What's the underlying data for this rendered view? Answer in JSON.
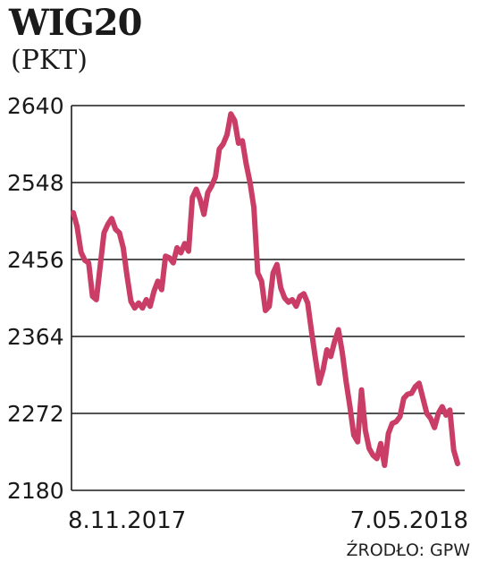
{
  "header": {
    "title": "WIG20",
    "subtitle": "(PKT)"
  },
  "source": "ŹRODŁO: GPW",
  "colors": {
    "line": "#c93d66",
    "grid": "#1a1a1a",
    "text": "#1a1a1a"
  },
  "chart_data": {
    "type": "line",
    "title": "WIG20",
    "ylabel": "(PKT)",
    "ylim": [
      2180,
      2640
    ],
    "yticks": [
      "2640",
      "2548",
      "2456",
      "2364",
      "2272",
      "2180"
    ],
    "xlim": [
      0,
      100
    ],
    "xticks": [
      "8.11.2017",
      "7.05.2018"
    ],
    "grid": "horizontal",
    "series": [
      {
        "name": "",
        "x": [
          0,
          1,
          2,
          3,
          4,
          5,
          6,
          7,
          8,
          9,
          10,
          11,
          12,
          13,
          14,
          15,
          16,
          17,
          18,
          19,
          20,
          21,
          22,
          23,
          24,
          25,
          26,
          27,
          28,
          29,
          30,
          31,
          32,
          33,
          34,
          35,
          36,
          37,
          38,
          39,
          40,
          41,
          42,
          43,
          44,
          45,
          46,
          47,
          48,
          49,
          50,
          51,
          52,
          53,
          54,
          55,
          56,
          57,
          58,
          59,
          60,
          61,
          62,
          63,
          64,
          65,
          66,
          67,
          68,
          69,
          70,
          71,
          72,
          73,
          74,
          75,
          76,
          77,
          78,
          79,
          80,
          81,
          82,
          83,
          84,
          85,
          86,
          87,
          88,
          89,
          90,
          91,
          92,
          93,
          94,
          95,
          96,
          97,
          98,
          99,
          100
        ],
        "values": [
          2512,
          2495,
          2465,
          2455,
          2452,
          2412,
          2408,
          2448,
          2488,
          2498,
          2505,
          2492,
          2488,
          2470,
          2436,
          2406,
          2398,
          2404,
          2398,
          2408,
          2400,
          2418,
          2430,
          2420,
          2460,
          2458,
          2452,
          2470,
          2464,
          2475,
          2466,
          2530,
          2540,
          2528,
          2510,
          2536,
          2544,
          2555,
          2588,
          2594,
          2605,
          2630,
          2622,
          2595,
          2598,
          2570,
          2548,
          2518,
          2440,
          2430,
          2395,
          2400,
          2440,
          2450,
          2422,
          2410,
          2405,
          2408,
          2400,
          2412,
          2415,
          2404,
          2370,
          2338,
          2308,
          2324,
          2348,
          2340,
          2358,
          2372,
          2345,
          2310,
          2280,
          2246,
          2238,
          2300,
          2252,
          2230,
          2222,
          2218,
          2236,
          2210,
          2248,
          2260,
          2262,
          2268,
          2290,
          2295,
          2296,
          2304,
          2308,
          2290,
          2272,
          2266,
          2255,
          2272,
          2280,
          2270,
          2276,
          2228,
          2212
        ]
      }
    ]
  }
}
